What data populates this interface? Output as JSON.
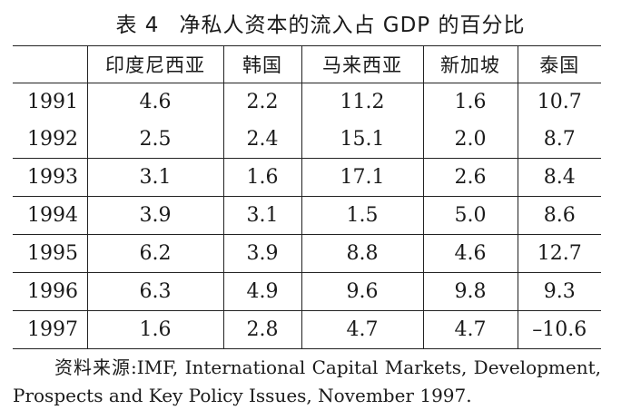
{
  "title": {
    "number": "表 4",
    "text": "净私人资本的流入占 GDP 的百分比"
  },
  "table": {
    "columns": [
      "",
      "印度尼西亚",
      "韩国",
      "马来西亚",
      "新加坡",
      "泰国"
    ],
    "rows": [
      {
        "year": "1991",
        "values": [
          "4.6",
          "2.2",
          "11.2",
          "1.6",
          "10.7"
        ]
      },
      {
        "year": "1992",
        "values": [
          "2.5",
          "2.4",
          "15.1",
          "2.0",
          "8.7"
        ]
      },
      {
        "year": "1993",
        "values": [
          "3.1",
          "1.6",
          "17.1",
          "2.6",
          "8.4"
        ]
      },
      {
        "year": "1994",
        "values": [
          "3.9",
          "3.1",
          "1.5",
          "5.0",
          "8.6"
        ]
      },
      {
        "year": "1995",
        "values": [
          "6.2",
          "3.9",
          "8.8",
          "4.6",
          "12.7"
        ]
      },
      {
        "year": "1996",
        "values": [
          "6.3",
          "4.9",
          "9.6",
          "9.8",
          "9.3"
        ]
      },
      {
        "year": "1997",
        "values": [
          "1.6",
          "2.8",
          "4.7",
          "4.7",
          "–10.6"
        ]
      }
    ]
  },
  "source": {
    "line1": "资料来源:IMF,  International Capital Markets,  Development,",
    "line2": "Prospects and Key Policy Issues, November 1997."
  }
}
